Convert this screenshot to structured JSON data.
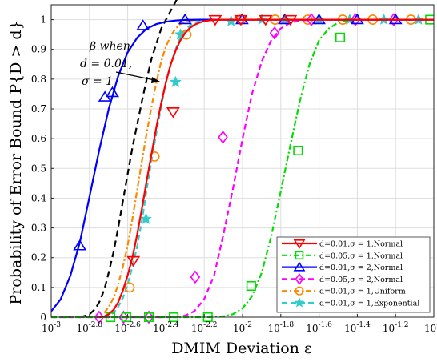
{
  "chart_data": {
    "type": "line",
    "xlabel": "DMIM Deviation ε",
    "ylabel": "Probability of Error Bound P{D > d}",
    "x_scale": "log",
    "xlim": [
      0.001,
      0.1
    ],
    "ylim": [
      0,
      1.05
    ],
    "x_ticks": [
      {
        "value": 0.001,
        "base": "10",
        "exp": "-3"
      },
      {
        "value": 0.001584893,
        "base": "10",
        "exp": "-2.8"
      },
      {
        "value": 0.002511886,
        "base": "10",
        "exp": "-2.6"
      },
      {
        "value": 0.003981072,
        "base": "10",
        "exp": "-2.4"
      },
      {
        "value": 0.006309573,
        "base": "10",
        "exp": "-2.2"
      },
      {
        "value": 0.01,
        "base": "10",
        "exp": "-2"
      },
      {
        "value": 0.015848932,
        "base": "10",
        "exp": "-1.8"
      },
      {
        "value": 0.025118864,
        "base": "10",
        "exp": "-1.6"
      },
      {
        "value": 0.039810717,
        "base": "10",
        "exp": "-1.4"
      },
      {
        "value": 0.063095734,
        "base": "10",
        "exp": "-1.2"
      },
      {
        "value": 0.1,
        "base": "10",
        "exp": "-1"
      }
    ],
    "y_ticks": [
      "0",
      "0.1",
      "0.2",
      "0.3",
      "0.4",
      "0.5",
      "0.6",
      "0.7",
      "0.8",
      "0.9",
      "1"
    ],
    "grid": true,
    "legend_position": "bottom-right",
    "series": [
      {
        "name": "d=0.01,σ = 1,Normal",
        "color": "#ff0000",
        "dash": "solid",
        "marker": "triangle-down",
        "x": [
          0.00178,
          0.0019,
          0.002,
          0.00212,
          0.00224,
          0.00237,
          0.00251,
          0.00266,
          0.00282,
          0.00299,
          0.00316,
          0.00335,
          0.00355,
          0.00376,
          0.00398,
          0.00422,
          0.00447,
          0.00473,
          0.00501,
          0.00531,
          0.00562,
          0.00596,
          0.00631,
          0.007,
          0.008,
          0.0095,
          0.012,
          0.018,
          0.03,
          0.06,
          0.1
        ],
        "y": [
          0.0,
          0.003,
          0.01,
          0.025,
          0.05,
          0.09,
          0.14,
          0.2,
          0.28,
          0.37,
          0.46,
          0.55,
          0.64,
          0.72,
          0.79,
          0.85,
          0.895,
          0.93,
          0.955,
          0.972,
          0.983,
          0.99,
          0.995,
          0.999,
          1.0,
          1.0,
          1.0,
          1.0,
          1.0,
          1.0,
          1.0
        ],
        "marker_x": [
          0.00269,
          0.00434,
          0.0072,
          0.0098,
          0.0132,
          0.0178
        ],
        "marker_y": [
          0.19,
          0.69,
          1.0,
          1.0,
          1.0,
          1.0
        ]
      },
      {
        "name": "d=0.05,σ = 1,Normal",
        "color": "#00dd00",
        "dash": "dash-dot",
        "marker": "square",
        "x": [
          0.001,
          0.0065,
          0.008,
          0.0089,
          0.01,
          0.0112,
          0.0126,
          0.0141,
          0.0158,
          0.0178,
          0.02,
          0.0224,
          0.0251,
          0.0282,
          0.0316,
          0.0355,
          0.0398,
          0.05,
          0.1
        ],
        "y": [
          0.0,
          0.0,
          0.003,
          0.01,
          0.03,
          0.07,
          0.15,
          0.27,
          0.42,
          0.58,
          0.73,
          0.85,
          0.93,
          0.97,
          0.99,
          0.997,
          1.0,
          1.0,
          1.0
        ],
        "marker_x": [
          0.00204,
          0.00247,
          0.00324,
          0.00437,
          0.00659,
          0.0111,
          0.0195,
          0.0324,
          0.0955
        ],
        "marker_y": [
          0.0,
          0.0,
          0.0,
          0.0,
          0.0,
          0.105,
          0.56,
          0.94,
          1.0
        ]
      },
      {
        "name": "d=0.01,σ = 2,Normal",
        "color": "#0000ff",
        "dash": "solid",
        "marker": "triangle-up",
        "x": [
          0.001,
          0.00112,
          0.00126,
          0.00141,
          0.00158,
          0.00178,
          0.002,
          0.00224,
          0.00251,
          0.00282,
          0.00316,
          0.00355,
          0.00398,
          0.00447,
          0.005,
          0.006,
          0.01,
          0.1
        ],
        "y": [
          0.02,
          0.06,
          0.14,
          0.25,
          0.4,
          0.56,
          0.7,
          0.81,
          0.89,
          0.94,
          0.97,
          0.985,
          0.993,
          0.997,
          0.999,
          1.0,
          1.0,
          1.0
        ],
        "marker_x": [
          0.00141,
          0.00191,
          0.00209,
          0.00302,
          0.00501,
          0.00994,
          0.0166,
          0.0251,
          0.0398,
          0.0631
        ],
        "marker_y": [
          0.24,
          0.74,
          0.755,
          0.98,
          1.0,
          1.0,
          1.0,
          1.0,
          1.0,
          1.0
        ]
      },
      {
        "name": "d=0.05,σ = 2,Normal",
        "color": "#ff00ff",
        "dash": "dash",
        "marker": "diamond",
        "x": [
          0.001,
          0.0045,
          0.005,
          0.0056,
          0.0063,
          0.0071,
          0.0079,
          0.0089,
          0.01,
          0.0112,
          0.0126,
          0.0141,
          0.0158,
          0.0178,
          0.02,
          0.0224,
          0.0251,
          0.0316,
          0.1
        ],
        "y": [
          0.0,
          0.0,
          0.005,
          0.02,
          0.06,
          0.14,
          0.27,
          0.43,
          0.6,
          0.75,
          0.86,
          0.93,
          0.97,
          0.99,
          0.997,
          0.999,
          1.0,
          1.0,
          1.0
        ],
        "marker_x": [
          0.00178,
          0.00239,
          0.00324,
          0.00566,
          0.0079,
          0.0147,
          0.0229,
          0.0389,
          0.0617
        ],
        "marker_y": [
          0.0,
          0.0,
          0.0,
          0.135,
          0.605,
          0.955,
          1.0,
          1.0,
          1.0
        ]
      },
      {
        "name": "d=0.01,σ = 1,Uniform",
        "color": "#ff8800",
        "dash": "dash-dot",
        "marker": "circle",
        "x": [
          0.00166,
          0.0018,
          0.0019,
          0.002,
          0.00212,
          0.00224,
          0.00237,
          0.00251,
          0.00266,
          0.00282,
          0.00299,
          0.00316,
          0.00335,
          0.00355,
          0.00376,
          0.00398,
          0.00422,
          0.00447,
          0.00473,
          0.00501,
          0.0055,
          0.006,
          0.0065,
          0.0075,
          0.1
        ],
        "y": [
          0.0,
          0.005,
          0.015,
          0.035,
          0.065,
          0.11,
          0.17,
          0.24,
          0.33,
          0.43,
          0.53,
          0.62,
          0.71,
          0.79,
          0.86,
          0.91,
          0.945,
          0.97,
          0.985,
          0.993,
          0.998,
          1.0,
          1.0,
          1.0,
          1.0
        ],
        "marker_x": [
          0.00257,
          0.00347,
          0.00509,
          0.0098,
          0.0148,
          0.0219,
          0.0334,
          0.0479,
          0.0759
        ],
        "marker_y": [
          0.1,
          0.54,
          0.95,
          1.0,
          1.0,
          1.0,
          1.0,
          1.0,
          1.0
        ]
      },
      {
        "name": "d=0.01,σ = 1,Exponential",
        "color": "#33cccc",
        "dash": "dash",
        "marker": "star",
        "x": [
          0.00188,
          0.002,
          0.00212,
          0.00224,
          0.00237,
          0.00251,
          0.00266,
          0.00282,
          0.00299,
          0.00316,
          0.00335,
          0.00355,
          0.00376,
          0.00398,
          0.00422,
          0.00447,
          0.00473,
          0.00501,
          0.00531,
          0.00562,
          0.006,
          0.0065,
          0.007,
          0.0085,
          0.1
        ],
        "y": [
          0.0,
          0.005,
          0.015,
          0.035,
          0.065,
          0.11,
          0.17,
          0.24,
          0.33,
          0.43,
          0.53,
          0.62,
          0.71,
          0.79,
          0.85,
          0.9,
          0.94,
          0.965,
          0.98,
          0.99,
          0.996,
          0.999,
          1.0,
          1.0,
          1.0
        ],
        "marker_x": [
          0.00313,
          0.00447,
          0.00474,
          0.00871,
          0.0126,
          0.0166,
          0.0251,
          0.0363,
          0.0548,
          0.0832
        ],
        "marker_y": [
          0.33,
          0.79,
          0.95,
          0.995,
          1.0,
          1.0,
          1.0,
          1.0,
          1.0,
          1.0
        ]
      }
    ],
    "reference_line": {
      "color": "#000000",
      "dash": "dash",
      "x": [
        0.00141,
        0.0015,
        0.0016,
        0.0017,
        0.0018,
        0.0019,
        0.002,
        0.00212,
        0.00224,
        0.00237,
        0.00251,
        0.00266,
        0.00282,
        0.00299,
        0.00316,
        0.00335,
        0.00355,
        0.00376,
        0.00398,
        0.00422,
        0.00447,
        0.00473
      ],
      "y": [
        0.0,
        0.004,
        0.012,
        0.028,
        0.055,
        0.095,
        0.15,
        0.22,
        0.3,
        0.39,
        0.48,
        0.57,
        0.65,
        0.73,
        0.8,
        0.87,
        0.92,
        0.97,
        1.0,
        1.03,
        1.06,
        1.09
      ]
    },
    "annotation": {
      "line1": "β when",
      "line2": "d = 0.01,",
      "line3": "σ = 1"
    }
  }
}
